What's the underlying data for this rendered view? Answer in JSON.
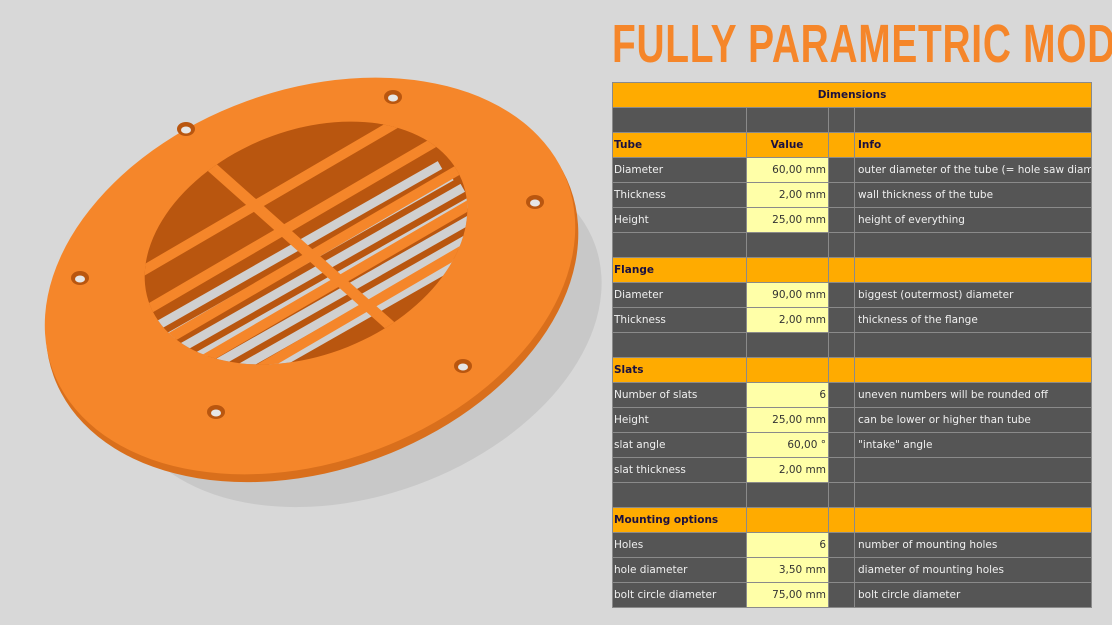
{
  "title": "FULLY PARAMETRIC MODEL",
  "colors": {
    "accent": "#ffab00",
    "model": "#f5862a",
    "input_cell": "#ffffa8",
    "cell": "#555555"
  },
  "table": {
    "title": "Dimensions",
    "sections": [
      {
        "header": "Tube",
        "value_header": "Value",
        "info_header": "Info",
        "rows": [
          {
            "label": "Diameter",
            "value": "60,00 mm",
            "info": "outer diameter of the tube (= hole saw diameter)"
          },
          {
            "label": "Thickness",
            "value": "2,00 mm",
            "info": "wall thickness of the tube"
          },
          {
            "label": "Height",
            "value": "25,00 mm",
            "info": "height of everything"
          }
        ]
      },
      {
        "header": "Flange",
        "rows": [
          {
            "label": "Diameter",
            "value": "90,00 mm",
            "info": "biggest (outermost) diameter"
          },
          {
            "label": "Thickness",
            "value": "2,00 mm",
            "info": "thickness of the flange"
          }
        ]
      },
      {
        "header": "Slats",
        "rows": [
          {
            "label": "Number of slats",
            "value": "6",
            "info": "uneven numbers will be rounded off"
          },
          {
            "label": "Height",
            "value": "25,00 mm",
            "info": "can be lower or higher than tube"
          },
          {
            "label": "slat angle",
            "value": "60,00 °",
            "info": "\"intake\" angle"
          },
          {
            "label": "slat thickness",
            "value": "2,00 mm",
            "info": ""
          }
        ]
      },
      {
        "header": "Mounting options",
        "rows": [
          {
            "label": "Holes",
            "value": "6",
            "info": "number of mounting holes"
          },
          {
            "label": "hole diameter",
            "value": "3,50 mm",
            "info": "diameter of mounting holes"
          },
          {
            "label": "bolt circle diameter",
            "value": "75,00 mm",
            "info": "bolt circle diameter"
          }
        ]
      }
    ]
  }
}
